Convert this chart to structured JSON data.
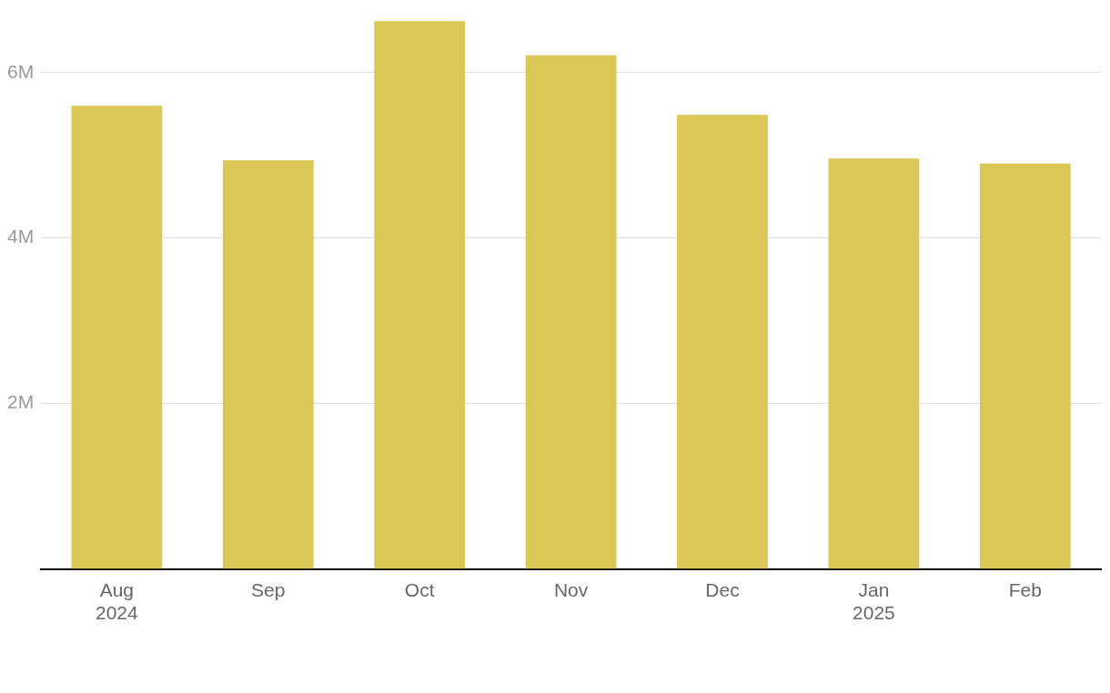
{
  "chart_data": {
    "type": "bar",
    "categories": [
      "Aug\n2024",
      "Sep",
      "Oct",
      "Nov",
      "Dec",
      "Jan\n2025",
      "Feb"
    ],
    "values": [
      5.6,
      4.94,
      6.62,
      6.21,
      5.49,
      4.96,
      4.9
    ],
    "color": "#dbc755",
    "ylim": [
      0,
      6.65
    ],
    "yticks": [
      {
        "value": 2,
        "label": "2M"
      },
      {
        "value": 4,
        "label": "4M"
      },
      {
        "value": 6,
        "label": "6M"
      }
    ],
    "grid": "y"
  }
}
